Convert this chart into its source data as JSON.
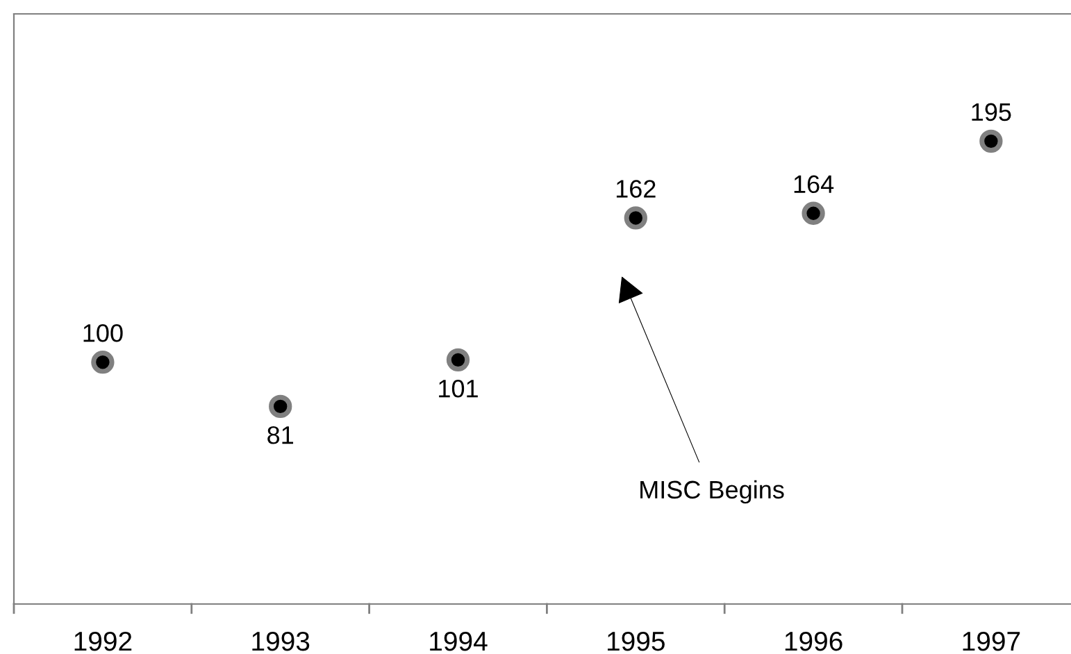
{
  "chart_data": {
    "type": "scatter",
    "categories": [
      "1992",
      "1993",
      "1994",
      "1995",
      "1996",
      "1997"
    ],
    "series": [
      {
        "color": "#000000",
        "values": [
          100,
          81,
          101,
          162,
          164,
          195
        ]
      }
    ],
    "data_labels": true,
    "marker": "circle",
    "grid": false,
    "legend": false,
    "tick_labels": "x",
    "annotations": [
      "MISC Begins"
    ]
  }
}
